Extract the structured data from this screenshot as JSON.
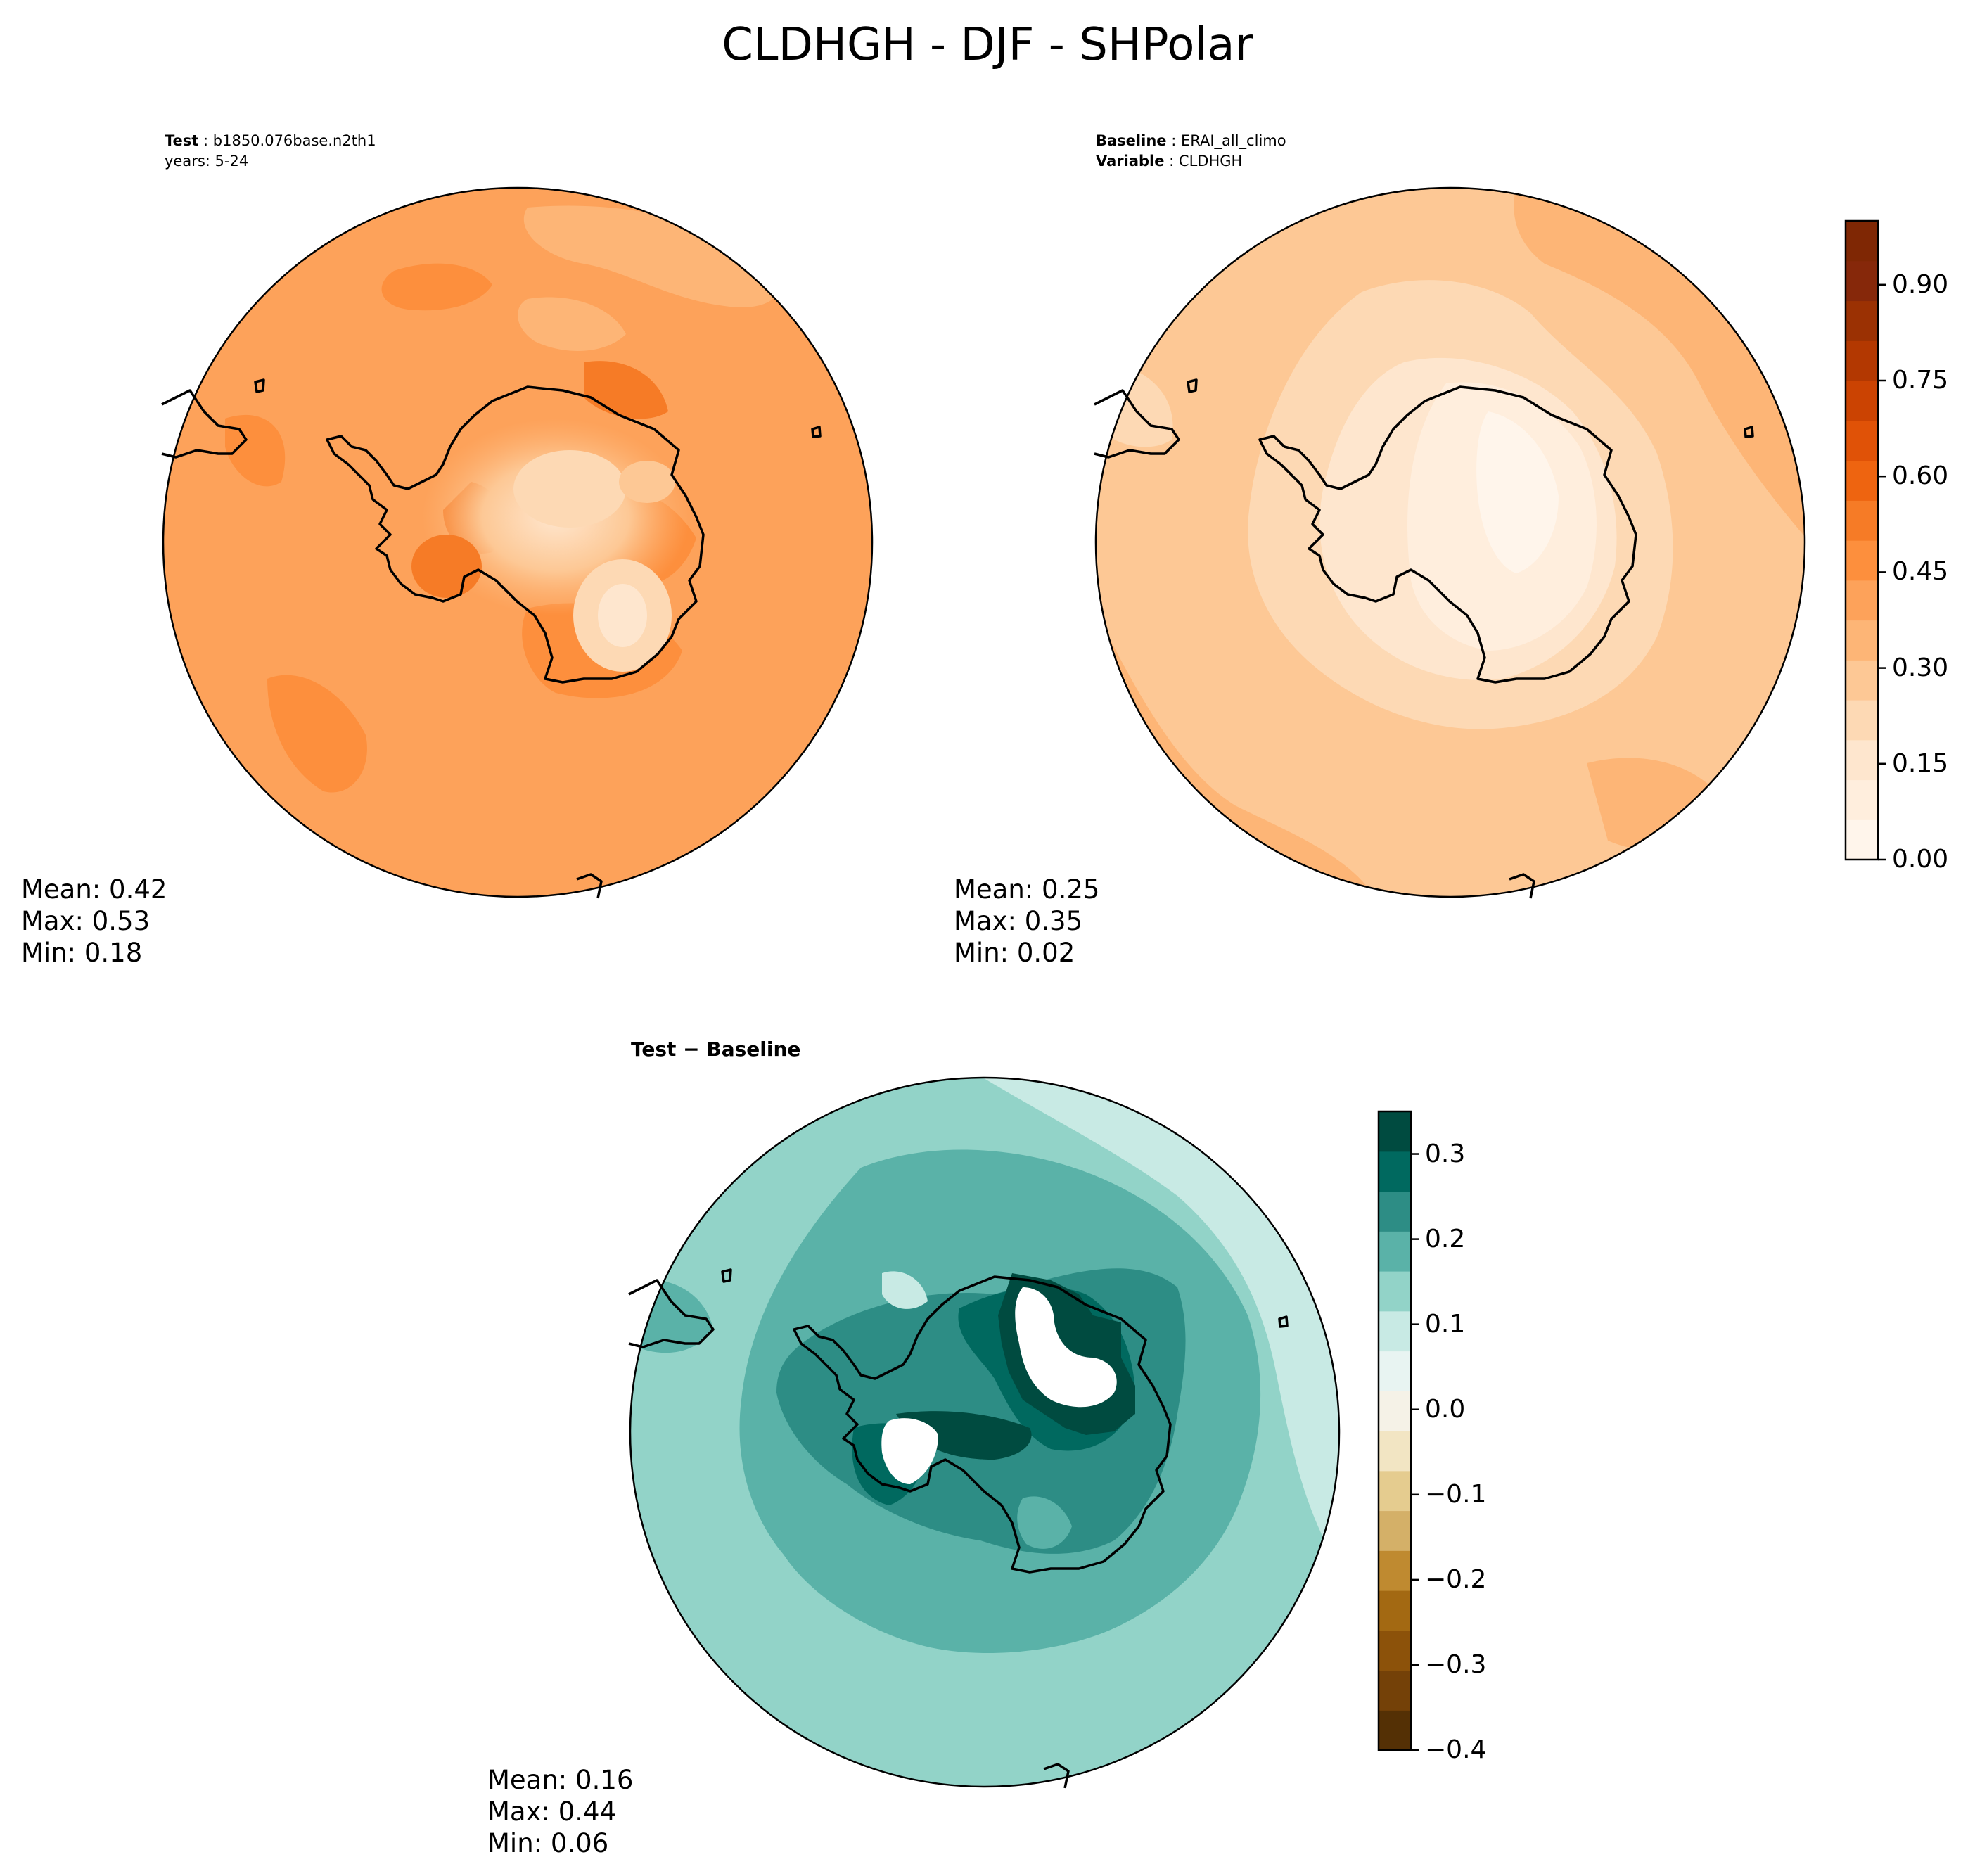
{
  "figure": {
    "title": "CLDHGH - DJF - SHPolar"
  },
  "panels": {
    "test": {
      "header_line1_key": "Test",
      "header_line1_value": "b1850.076base.n2th1",
      "header_line2": "years: 5-24",
      "stats": {
        "mean": "Mean:  0.42",
        "max": "Max:  0.53",
        "min": "Min:  0.18"
      }
    },
    "baseline": {
      "header_line1_key": "Baseline",
      "header_line1_value": "ERAI_all_climo",
      "header_line2_key": "Variable",
      "header_line2_value": "CLDHGH",
      "stats": {
        "mean": "Mean:  0.25",
        "max": "Max:  0.35",
        "min": "Min:  0.02"
      }
    },
    "diff": {
      "title": "Test − Baseline",
      "stats": {
        "mean": "Mean:  0.16",
        "max": "Max:  0.44",
        "min": "Min:  0.06"
      }
    }
  },
  "colorbars": {
    "top": {
      "ticks": [
        "0.00",
        "0.15",
        "0.30",
        "0.45",
        "0.60",
        "0.75",
        "0.90"
      ],
      "range": [
        0,
        1
      ],
      "colormap": "Oranges"
    },
    "bottom": {
      "ticks": [
        "−0.4",
        "−0.3",
        "−0.2",
        "−0.1",
        "0.0",
        "0.1",
        "0.2",
        "0.3"
      ],
      "range": [
        -0.4,
        0.35
      ],
      "colormap": "BrBG"
    }
  },
  "colors": {
    "oranges": [
      "#fff5eb",
      "#ffeedd",
      "#fee6ce",
      "#fdd9b4",
      "#fdc895",
      "#fdb576",
      "#fda25a",
      "#fd8f3d",
      "#f67b26",
      "#ee6410",
      "#e05207",
      "#cb4302",
      "#b33801",
      "#9b3103",
      "#86280a",
      "#7f2704"
    ],
    "brbg": [
      "#543005",
      "#744108",
      "#8c520a",
      "#a36912",
      "#bf8a30",
      "#d4b068",
      "#e5cc8f",
      "#f2e5c3",
      "#f5f2e7",
      "#e8f4f2",
      "#c8eae4",
      "#92d3c8",
      "#5ab2a8",
      "#2d8d85",
      "#00695f",
      "#004b40"
    ]
  }
}
